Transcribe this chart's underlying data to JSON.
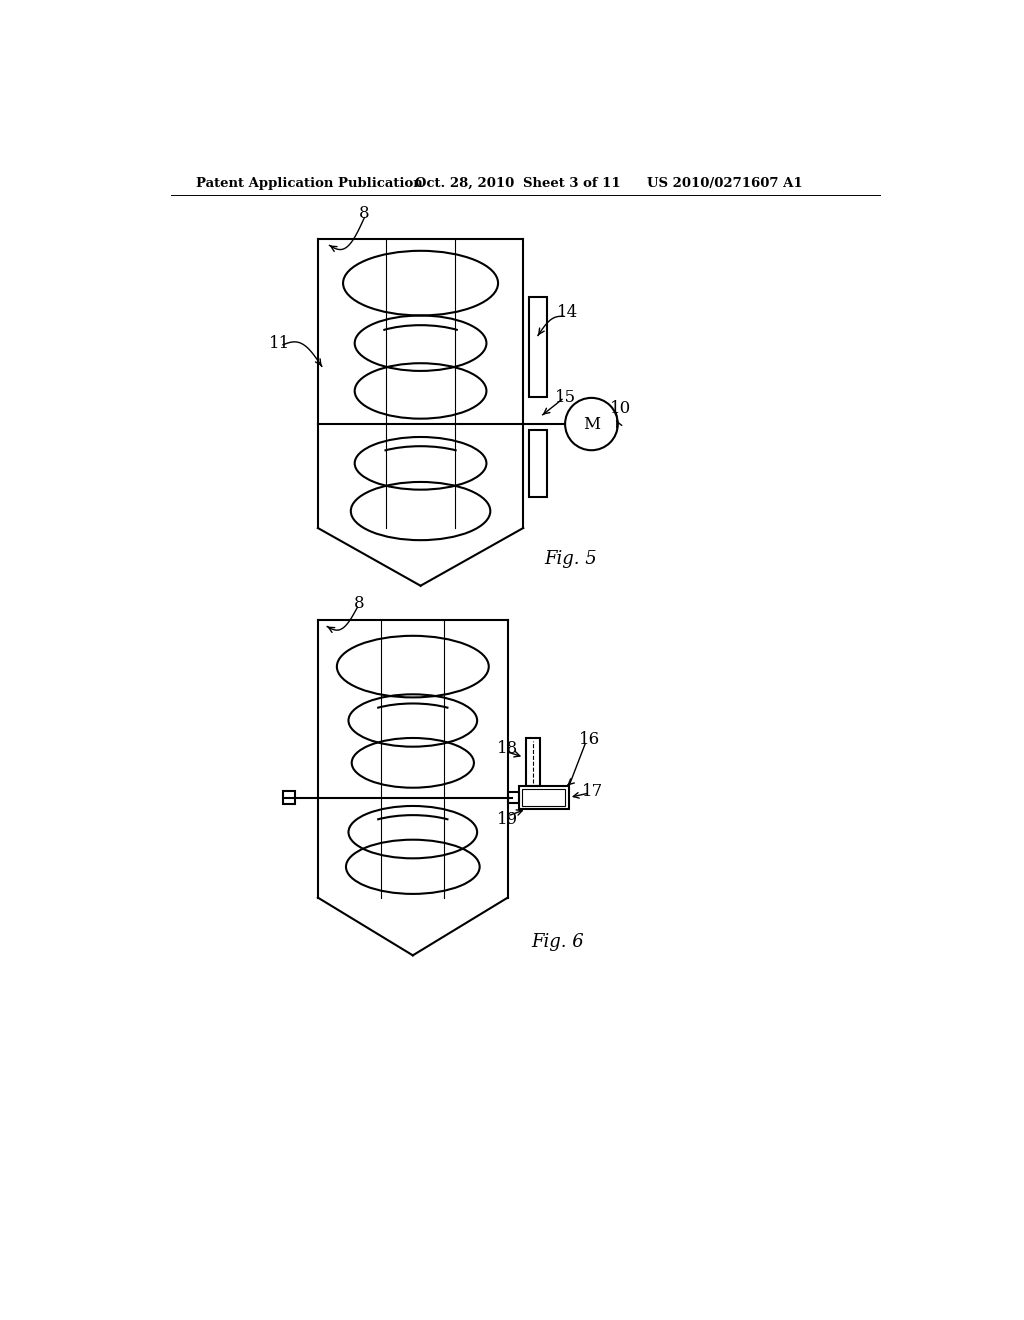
{
  "background_color": "#ffffff",
  "header_text": "Patent Application Publication",
  "header_date": "Oct. 28, 2010",
  "header_sheet": "Sheet 3 of 11",
  "header_patent": "US 2010/0271607 A1",
  "fig5_label": "Fig. 5",
  "fig6_label": "Fig. 6",
  "line_color": "#000000",
  "lw": 1.5,
  "lw_thin": 0.8
}
